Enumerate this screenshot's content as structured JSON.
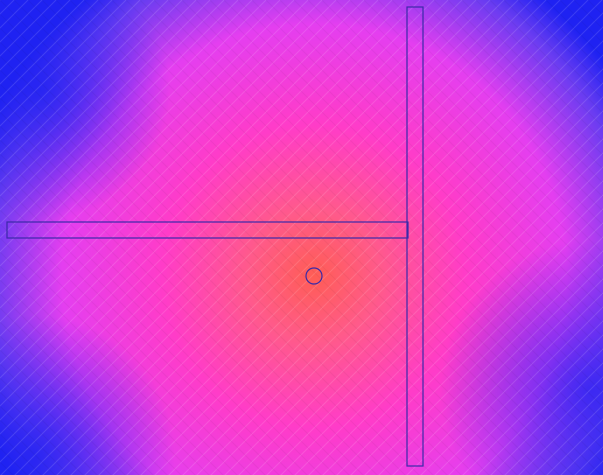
{
  "scene": {
    "type": "field-simulation-heatmap",
    "colormap": [
      "#1f22f2",
      "#6a3cf1",
      "#e43ef0",
      "#ff3cc8",
      "#ff5a8a",
      "#ff5d55"
    ],
    "background": "#ffffff",
    "outline_color": "#3a2aa8",
    "mesh_visible": true
  },
  "labels": {}
}
